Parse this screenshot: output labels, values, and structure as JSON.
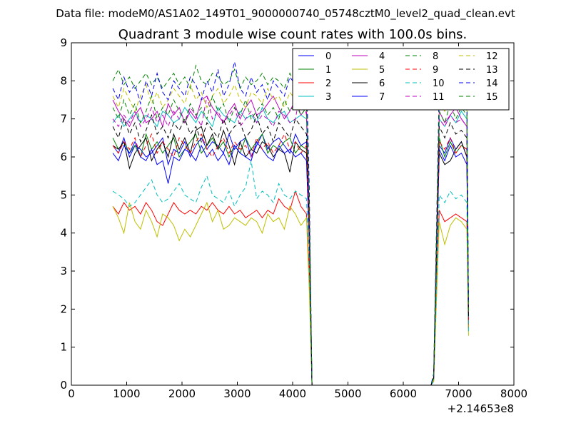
{
  "figure": {
    "suptitle": "Data file: modeM0/AS1A02_149T01_9000000740_05748cztM0_level2_quad_clean.evt",
    "title": "Quadrant 3 module wise count rates with 100.0s bins.",
    "x_offset_label": "+2.14653e8"
  },
  "colors": {
    "mpl": [
      "#0000ff",
      "#008000",
      "#ff0000",
      "#00bfbf",
      "#bf00bf",
      "#bfbf00",
      "#000000"
    ]
  },
  "chart_data": {
    "type": "line",
    "title": "Quadrant 3 module wise count rates with 100.0s bins.",
    "xlabel": "",
    "ylabel": "",
    "x_offset": 214653000,
    "xlim": [
      0,
      8000
    ],
    "ylim": [
      0,
      9
    ],
    "xticks": [
      0,
      1000,
      2000,
      3000,
      4000,
      5000,
      6000,
      7000,
      8000
    ],
    "yticks": [
      0,
      1,
      2,
      3,
      4,
      5,
      6,
      7,
      8,
      9
    ],
    "grid": false,
    "legend": {
      "placement": "top-right",
      "columns": 4
    },
    "x": [
      750,
      850,
      950,
      1050,
      1150,
      1250,
      1350,
      1450,
      1550,
      1650,
      1750,
      1850,
      1950,
      2050,
      2150,
      2250,
      2350,
      2450,
      2550,
      2650,
      2750,
      2850,
      2950,
      3050,
      3150,
      3250,
      3350,
      3450,
      3550,
      3650,
      3750,
      3850,
      3950,
      4050,
      4150,
      4250,
      4300,
      4350,
      4400,
      4450,
      6500,
      6550,
      6650,
      6750,
      6850,
      6950,
      7050,
      7150,
      7180
    ],
    "series": [
      {
        "name": "0",
        "color": "#0000ff",
        "style": "solid",
        "values": [
          6.3,
          6.1,
          6.5,
          6.0,
          6.3,
          6.2,
          6.0,
          6.1,
          6.3,
          6.5,
          5.8,
          6.2,
          6.1,
          6.4,
          6.0,
          6.3,
          6.5,
          6.2,
          6.4,
          6.3,
          6.1,
          6.6,
          6.2,
          6.4,
          6.5,
          6.0,
          6.3,
          6.6,
          6.2,
          6.4,
          6.5,
          6.3,
          6.1,
          6.6,
          6.3,
          6.4,
          4.0,
          0,
          0,
          0,
          0,
          0.2,
          6.3,
          6.1,
          6.5,
          6.2,
          6.4,
          6.0,
          2.0
        ]
      },
      {
        "name": "1",
        "color": "#008000",
        "style": "solid",
        "values": [
          6.5,
          6.2,
          6.4,
          6.1,
          6.3,
          6.0,
          6.6,
          6.2,
          6.4,
          6.1,
          6.3,
          6.5,
          6.0,
          6.2,
          6.4,
          6.6,
          6.1,
          6.3,
          6.5,
          6.2,
          6.4,
          6.0,
          6.3,
          6.1,
          6.5,
          6.2,
          6.4,
          6.6,
          6.1,
          6.3,
          6.2,
          6.4,
          6.5,
          6.1,
          6.3,
          6.2,
          4.0,
          0,
          0,
          0,
          0,
          0.2,
          6.5,
          6.0,
          6.4,
          6.1,
          6.3,
          6.2,
          1.5
        ]
      },
      {
        "name": "2",
        "color": "#ff0000",
        "style": "solid",
        "values": [
          4.7,
          4.5,
          4.8,
          4.6,
          4.7,
          4.5,
          4.8,
          4.6,
          4.3,
          4.2,
          4.5,
          4.8,
          4.6,
          4.5,
          4.6,
          4.5,
          4.7,
          4.6,
          4.8,
          4.6,
          4.5,
          4.7,
          4.5,
          4.6,
          4.4,
          4.5,
          4.6,
          4.4,
          4.6,
          4.5,
          4.9,
          4.7,
          4.6,
          5.1,
          4.7,
          4.5,
          3.0,
          0,
          0,
          0,
          0,
          0.1,
          4.6,
          4.3,
          4.4,
          4.5,
          4.4,
          4.3,
          1.5
        ]
      },
      {
        "name": "3",
        "color": "#00bfbf",
        "style": "solid",
        "values": [
          6.9,
          7.1,
          6.8,
          7.0,
          7.2,
          6.9,
          7.1,
          7.0,
          6.8,
          7.2,
          7.1,
          6.9,
          7.0,
          7.3,
          7.1,
          6.9,
          7.2,
          7.0,
          6.8,
          7.3,
          7.1,
          7.0,
          6.9,
          7.2,
          7.0,
          7.1,
          6.9,
          7.3,
          7.0,
          6.9,
          7.1,
          7.2,
          6.9,
          7.0,
          7.1,
          7.0,
          4.5,
          0,
          0,
          0,
          0,
          0.2,
          7.0,
          6.8,
          7.1,
          6.9,
          7.2,
          7.0,
          1.8
        ]
      },
      {
        "name": "4",
        "color": "#bf00bf",
        "style": "solid",
        "values": [
          7.5,
          7.2,
          7.0,
          6.8,
          7.1,
          7.3,
          6.9,
          7.0,
          7.2,
          6.8,
          7.4,
          7.1,
          7.3,
          6.9,
          7.2,
          7.0,
          7.5,
          7.6,
          7.3,
          7.1,
          6.9,
          7.2,
          7.4,
          7.0,
          7.3,
          7.5,
          7.1,
          7.2,
          7.4,
          7.6,
          7.3,
          7.0,
          7.2,
          7.5,
          7.1,
          7.3,
          4.5,
          0,
          0,
          0,
          0,
          0.2,
          7.2,
          6.9,
          7.1,
          7.3,
          7.0,
          6.8,
          1.6
        ]
      },
      {
        "name": "5",
        "color": "#bfbf00",
        "style": "solid",
        "values": [
          4.7,
          4.4,
          4.0,
          4.8,
          4.3,
          4.1,
          4.6,
          4.3,
          3.9,
          4.5,
          4.4,
          4.2,
          3.8,
          4.1,
          3.9,
          4.2,
          4.5,
          4.8,
          4.3,
          4.6,
          4.1,
          4.2,
          4.4,
          4.3,
          4.2,
          4.4,
          4.3,
          4.0,
          4.5,
          4.3,
          4.4,
          4.1,
          4.7,
          4.5,
          4.2,
          4.4,
          2.5,
          0,
          0,
          0,
          0,
          0.1,
          4.3,
          3.7,
          4.2,
          4.4,
          4.3,
          4.1,
          1.3
        ]
      },
      {
        "name": "6",
        "color": "#000000",
        "style": "solid",
        "values": [
          6.3,
          6.2,
          6.4,
          5.7,
          6.1,
          6.3,
          6.5,
          5.9,
          6.2,
          6.4,
          6.0,
          6.6,
          6.2,
          6.5,
          6.1,
          6.7,
          6.8,
          6.3,
          6.6,
          6.2,
          6.7,
          6.3,
          5.8,
          6.4,
          6.0,
          6.2,
          6.1,
          6.4,
          6.3,
          6.0,
          6.2,
          6.1,
          5.6,
          6.4,
          6.2,
          6.1,
          3.8,
          0,
          0,
          0,
          0,
          0.2,
          6.1,
          5.8,
          5.9,
          6.2,
          6.4,
          6.0,
          1.9
        ]
      },
      {
        "name": "7",
        "color": "#0000ff",
        "style": "solid",
        "values": [
          6.1,
          5.9,
          6.3,
          6.1,
          6.4,
          6.0,
          5.9,
          6.2,
          5.8,
          5.9,
          5.3,
          6.0,
          5.9,
          6.2,
          6.1,
          5.9,
          6.3,
          6.0,
          6.2,
          5.9,
          6.1,
          5.8,
          6.3,
          6.1,
          6.0,
          5.9,
          6.4,
          6.2,
          6.0,
          5.9,
          6.3,
          6.1,
          6.2,
          6.0,
          6.1,
          5.9,
          3.8,
          0,
          0,
          0,
          0,
          0.2,
          6.2,
          5.9,
          6.3,
          6.0,
          6.1,
          5.8,
          1.7
        ]
      },
      {
        "name": "8",
        "color": "#008000",
        "style": "dashed",
        "values": [
          8.0,
          8.3,
          7.9,
          8.1,
          7.8,
          8.0,
          8.2,
          7.9,
          8.1,
          7.8,
          8.0,
          8.2,
          7.9,
          8.1,
          7.8,
          8.4,
          8.0,
          7.9,
          8.2,
          8.1,
          7.9,
          8.0,
          8.3,
          7.8,
          8.1,
          7.9,
          8.0,
          8.2,
          7.9,
          8.1,
          8.0,
          7.8,
          8.2,
          7.9,
          8.1,
          8.0,
          5.0,
          0,
          0,
          0,
          0,
          0.3,
          7.9,
          7.6,
          7.8,
          8.0,
          7.7,
          7.9,
          2.2
        ]
      },
      {
        "name": "9",
        "color": "#ff0000",
        "style": "dashed",
        "values": [
          6.3,
          6.1,
          6.4,
          6.2,
          6.5,
          6.0,
          6.3,
          6.6,
          6.1,
          6.4,
          6.2,
          6.0,
          6.5,
          6.3,
          6.1,
          6.4,
          6.6,
          6.2,
          6.0,
          6.3,
          6.5,
          6.1,
          6.4,
          6.2,
          6.3,
          6.0,
          6.5,
          6.2,
          6.4,
          6.1,
          6.3,
          6.6,
          6.2,
          6.4,
          6.1,
          6.3,
          4.0,
          0,
          0,
          0,
          0,
          0.2,
          6.4,
          6.2,
          6.5,
          6.1,
          6.3,
          6.2,
          1.6
        ]
      },
      {
        "name": "10",
        "color": "#00bfbf",
        "style": "dashed",
        "values": [
          5.1,
          5.0,
          4.9,
          4.7,
          4.8,
          5.0,
          5.2,
          5.4,
          5.0,
          4.8,
          4.9,
          5.1,
          5.3,
          5.0,
          4.9,
          4.8,
          5.2,
          5.5,
          5.0,
          4.9,
          4.8,
          5.1,
          4.7,
          5.0,
          5.2,
          5.9,
          4.9,
          5.1,
          5.0,
          4.8,
          5.3,
          5.0,
          4.9,
          5.1,
          5.0,
          4.9,
          3.2,
          0,
          0,
          0,
          0,
          0.1,
          5.0,
          4.8,
          5.1,
          4.9,
          5.0,
          4.8,
          1.4
        ]
      },
      {
        "name": "11",
        "color": "#bf00bf",
        "style": "dashed",
        "values": [
          7.0,
          6.8,
          7.1,
          6.9,
          7.2,
          6.8,
          7.0,
          7.3,
          6.9,
          7.1,
          6.8,
          7.2,
          7.0,
          6.9,
          7.3,
          7.1,
          6.8,
          7.6,
          7.0,
          7.2,
          6.9,
          7.1,
          7.3,
          6.8,
          7.0,
          7.2,
          6.9,
          7.1,
          7.0,
          6.8,
          7.2,
          7.1,
          6.9,
          7.0,
          7.8,
          7.1,
          4.6,
          0,
          0,
          0,
          0,
          0.2,
          7.0,
          6.8,
          7.1,
          6.9,
          7.0,
          6.8,
          1.9
        ]
      },
      {
        "name": "12",
        "color": "#bfbf00",
        "style": "dashed",
        "values": [
          7.6,
          7.3,
          7.8,
          7.5,
          7.2,
          7.6,
          7.9,
          7.4,
          7.7,
          7.3,
          7.5,
          7.8,
          7.6,
          7.4,
          7.9,
          7.5,
          7.7,
          7.3,
          7.6,
          7.8,
          7.4,
          7.6,
          7.9,
          7.5,
          7.3,
          7.7,
          7.6,
          7.4,
          7.8,
          7.5,
          7.6,
          7.3,
          7.7,
          7.5,
          7.8,
          7.6,
          4.8,
          0,
          0,
          0,
          0,
          0.3,
          7.5,
          7.2,
          7.6,
          7.4,
          7.7,
          7.3,
          2.0
        ]
      },
      {
        "name": "13",
        "color": "#000000",
        "style": "dashed",
        "values": [
          6.8,
          6.5,
          7.0,
          6.6,
          6.9,
          6.4,
          6.7,
          7.1,
          6.6,
          6.8,
          6.5,
          6.9,
          6.7,
          7.0,
          6.6,
          6.8,
          6.4,
          6.9,
          6.7,
          6.5,
          7.0,
          6.6,
          6.8,
          6.9,
          6.5,
          6.7,
          7.1,
          6.6,
          6.8,
          6.4,
          6.9,
          6.7,
          6.5,
          7.0,
          6.8,
          6.6,
          4.3,
          0,
          0,
          0,
          0,
          0.2,
          6.8,
          6.5,
          6.9,
          6.6,
          6.7,
          6.5,
          1.8
        ]
      },
      {
        "name": "14",
        "color": "#0000ff",
        "style": "dashed",
        "values": [
          7.8,
          7.5,
          8.1,
          7.7,
          7.9,
          7.4,
          8.0,
          7.6,
          8.2,
          7.7,
          7.5,
          8.0,
          7.8,
          7.6,
          8.1,
          7.9,
          7.5,
          8.0,
          7.7,
          8.3,
          7.6,
          7.9,
          8.5,
          7.8,
          7.6,
          8.1,
          7.7,
          7.9,
          7.5,
          8.0,
          7.8,
          7.6,
          8.1,
          7.9,
          8.4,
          8.2,
          5.2,
          0,
          0,
          0,
          0,
          0.3,
          7.7,
          7.5,
          7.9,
          8.1,
          7.6,
          7.4,
          2.1
        ]
      },
      {
        "name": "15",
        "color": "#008000",
        "style": "dashed",
        "values": [
          7.3,
          7.0,
          7.5,
          7.1,
          7.4,
          6.9,
          7.2,
          7.6,
          7.0,
          7.3,
          7.1,
          7.5,
          7.2,
          6.9,
          7.4,
          7.1,
          7.3,
          7.0,
          7.6,
          7.2,
          7.4,
          6.9,
          7.3,
          7.1,
          7.5,
          7.0,
          7.2,
          7.4,
          7.1,
          7.3,
          7.0,
          7.5,
          7.2,
          7.4,
          7.1,
          7.3,
          4.7,
          0,
          0,
          0,
          0,
          0.2,
          7.2,
          6.9,
          7.4,
          7.0,
          7.3,
          7.1,
          1.9
        ]
      }
    ]
  }
}
